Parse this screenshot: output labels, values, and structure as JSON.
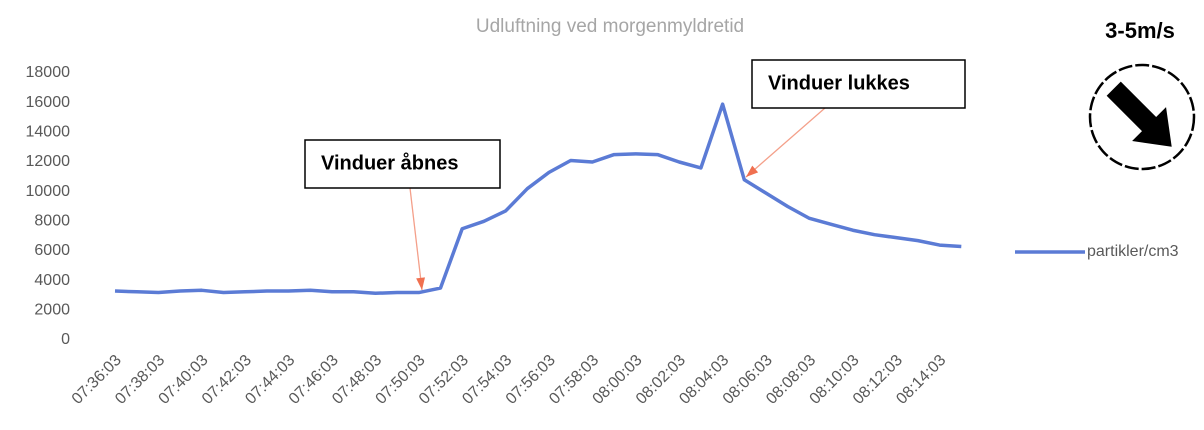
{
  "chart_data": {
    "type": "line",
    "title": "Udluftning ved morgenmyldretid",
    "categories": [
      "07:36:03",
      null,
      "07:38:03",
      null,
      "07:40:03",
      null,
      "07:42:03",
      null,
      "07:44:03",
      null,
      "07:46:03",
      null,
      "07:48:03",
      null,
      "07:50:03",
      null,
      "07:52:03",
      null,
      "07:54:03",
      null,
      "07:56:03",
      null,
      "07:58:03",
      null,
      "08:00:03",
      null,
      "08:02:03",
      null,
      "08:04:03",
      null,
      "08:06:03",
      null,
      "08:08:03",
      null,
      "08:10:03",
      null,
      "08:12:03",
      null,
      "08:14:03",
      null
    ],
    "series": [
      {
        "name": "partikler/cm3",
        "color": "#5b7bd5",
        "values": [
          3300,
          3250,
          3200,
          3300,
          3350,
          3200,
          3250,
          3300,
          3300,
          3350,
          3250,
          3250,
          3150,
          3200,
          3200,
          3500,
          7500,
          8000,
          8700,
          10200,
          11300,
          12100,
          12000,
          12500,
          12550,
          12500,
          12000,
          11600,
          15900,
          10800,
          9900,
          9000,
          8200,
          7800,
          7400,
          7100,
          6900,
          6700,
          6400,
          6300
        ]
      }
    ],
    "ylim": [
      0,
      18000
    ],
    "yticks": [
      0,
      2000,
      4000,
      6000,
      8000,
      10000,
      12000,
      14000,
      16000,
      18000
    ],
    "legend": "right",
    "annotations": [
      {
        "text": "Vinduer åbnes",
        "category": 14
      },
      {
        "text": "Vinduer lukkes",
        "category": 29
      }
    ],
    "wind_label": "3-5m/s"
  }
}
